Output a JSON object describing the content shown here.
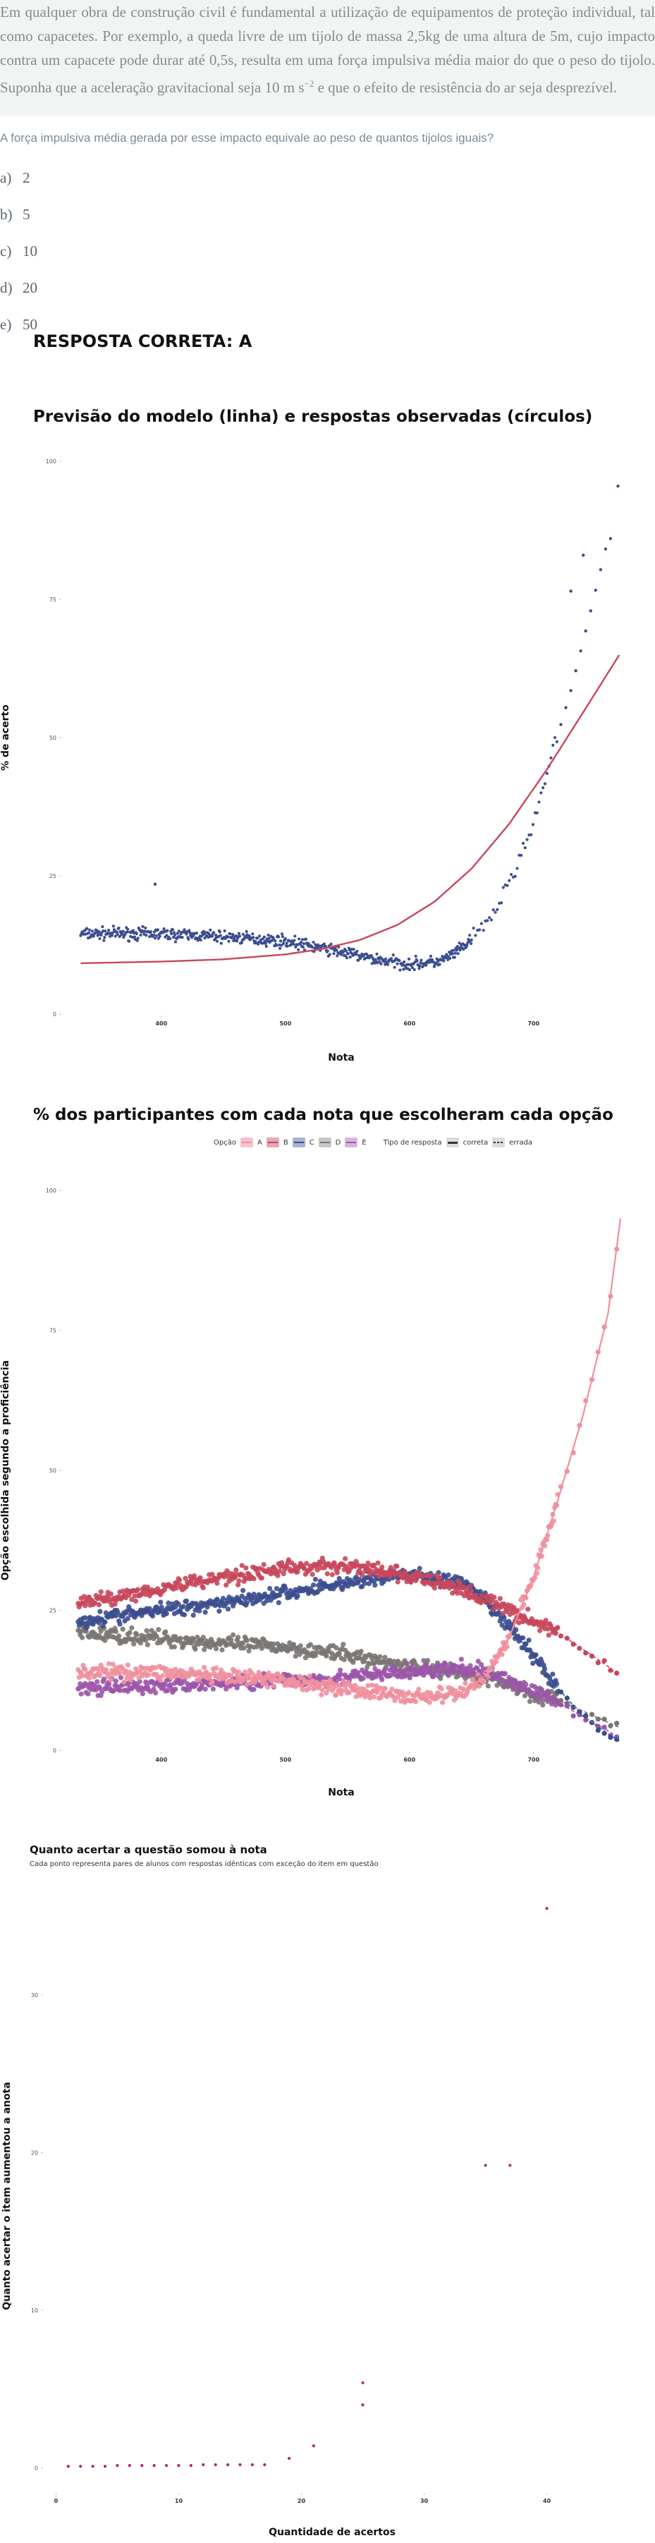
{
  "item": {
    "stem": "Em qualquer obra de construção civil é fundamental a utilização de equipamentos de proteção individual, tal como capacetes. Por exemplo, a queda livre de um tijolo de massa 2,5kg de uma altura de 5m, cujo impacto contra um capacete pode durar até 0,5s, resulta em uma força impulsiva média maior do que o peso do tijolo. Suponha que a aceleração gravitacional seja 10 m s",
    "stem_sup": "−2",
    "stem_tail": " e que o efeito de resistência do ar seja desprezível.",
    "question": "A força impulsiva média gerada por esse impacto equivale ao peso de quantos tijolos iguais?",
    "alternatives": [
      {
        "letter": "a)",
        "text": "2"
      },
      {
        "letter": "b)",
        "text": "5"
      },
      {
        "letter": "c)",
        "text": "10"
      },
      {
        "letter": "d)",
        "text": "20"
      },
      {
        "letter": "e)",
        "text": "50"
      }
    ],
    "answer": "RESPOSTA CORRETA: A"
  },
  "chart_data": [
    {
      "type": "scatter",
      "title": "Previsão do modelo (linha) e respostas observadas (círculos)",
      "xlabel": "Nota",
      "ylabel": "% de acerto",
      "x_ticks": [
        "400",
        "500",
        "600",
        "700"
      ],
      "y_ticks": [
        "0",
        "25",
        "50",
        "75",
        "100"
      ],
      "xlim": [
        320,
        770
      ],
      "ylim": [
        0,
        100
      ],
      "colors": {
        "points": "#3c4e8f",
        "model": "#c8475b"
      },
      "model_curve": {
        "x": [
          335,
          400,
          450,
          500,
          530,
          560,
          590,
          620,
          650,
          680,
          710,
          740,
          770
        ],
        "y": [
          9.2,
          9.5,
          9.9,
          10.8,
          11.8,
          13.4,
          16.1,
          20.3,
          26.3,
          34.3,
          44.0,
          54.6,
          65.3
        ]
      },
      "observed_trend": {
        "x": [
          335,
          360,
          400,
          450,
          500,
          540,
          570,
          600,
          625,
          640,
          655,
          670,
          690,
          705,
          715,
          730,
          745,
          760
        ],
        "y": [
          14.5,
          14.6,
          14.5,
          14.0,
          13.2,
          11.5,
          10.0,
          9.0,
          9.5,
          11.5,
          14.5,
          19.0,
          28.5,
          38.5,
          47.0,
          58.5,
          72.0,
          86.0
        ]
      },
      "outliers": [
        {
          "x": 395,
          "y": 23.5
        },
        {
          "x": 768,
          "y": 95.5
        },
        {
          "x": 740,
          "y": 83.0
        },
        {
          "x": 730,
          "y": 76.5
        }
      ]
    },
    {
      "type": "scatter",
      "title": "% dos participantes com cada nota que escolheram cada opção",
      "xlabel": "Nota",
      "ylabel": "Opção escolhida segundo a proficiência",
      "x_ticks": [
        "400",
        "500",
        "600",
        "700"
      ],
      "y_ticks": [
        "0",
        "25",
        "50",
        "75",
        "100"
      ],
      "xlim": [
        320,
        770
      ],
      "ylim": [
        0,
        100
      ],
      "legend": {
        "option_title": "Opção",
        "options": [
          {
            "name": "A",
            "color": "#f0909f"
          },
          {
            "name": "B",
            "color": "#c8475b"
          },
          {
            "name": "C",
            "color": "#3c4e8f"
          },
          {
            "name": "D",
            "color": "#7a7573"
          },
          {
            "name": "E",
            "color": "#9c55aa"
          }
        ],
        "type_title": "Tipo de resposta",
        "types": [
          "correta",
          "errada"
        ]
      },
      "series": [
        {
          "name": "A",
          "x": [
            330,
            400,
            450,
            500,
            550,
            600,
            640,
            660,
            680,
            700,
            720,
            740,
            760,
            770
          ],
          "y": [
            14,
            14,
            13,
            12.5,
            11,
            9.5,
            10,
            13,
            20,
            31,
            45,
            60,
            78,
            95
          ]
        },
        {
          "name": "B",
          "x": [
            330,
            400,
            450,
            500,
            550,
            600,
            640,
            660,
            680,
            700,
            720,
            740,
            760,
            770
          ],
          "y": [
            26,
            29,
            31,
            32.5,
            33,
            31,
            29,
            27,
            25,
            23,
            21,
            18,
            15,
            13
          ]
        },
        {
          "name": "C",
          "x": [
            330,
            400,
            450,
            500,
            550,
            600,
            640,
            660,
            680,
            700,
            720,
            740,
            760,
            770
          ],
          "y": [
            23,
            25,
            26.5,
            28,
            30,
            31.5,
            30,
            27,
            22,
            17,
            11,
            6,
            3,
            1.5
          ]
        },
        {
          "name": "D",
          "x": [
            330,
            400,
            450,
            500,
            550,
            600,
            640,
            660,
            680,
            700,
            720,
            740,
            760,
            770
          ],
          "y": [
            21,
            20,
            19,
            18.5,
            17,
            15,
            14,
            13,
            12,
            10,
            9,
            7,
            5,
            4
          ]
        },
        {
          "name": "E",
          "x": [
            330,
            400,
            450,
            500,
            550,
            600,
            640,
            660,
            680,
            700,
            720,
            740,
            760,
            770
          ],
          "y": [
            11,
            11.5,
            12,
            12.5,
            13,
            14,
            14.5,
            14,
            12.5,
            10.5,
            8.5,
            6,
            3.5,
            2
          ]
        }
      ]
    },
    {
      "type": "scatter",
      "title": "Quanto acertar a questão somou à nota",
      "subtitle": "Cada ponto representa pares de alunos com respostas idênticas com exceção do item em questão",
      "xlabel": "Quantidade de acertos",
      "ylabel": "Quanto acertar o item aumentou a anota",
      "x_ticks": [
        "0",
        "10",
        "20",
        "30",
        "40"
      ],
      "y_ticks": [
        "0",
        "10",
        "20",
        "30"
      ],
      "xlim": [
        -1,
        46
      ],
      "ylim": [
        -1.5,
        36
      ],
      "color": "#b3227a",
      "points": [
        {
          "x": 1,
          "y": 0.1
        },
        {
          "x": 2,
          "y": 0.1
        },
        {
          "x": 3,
          "y": 0.1
        },
        {
          "x": 4,
          "y": 0.1
        },
        {
          "x": 5,
          "y": 0.15
        },
        {
          "x": 6,
          "y": 0.15
        },
        {
          "x": 7,
          "y": 0.15
        },
        {
          "x": 8,
          "y": 0.15
        },
        {
          "x": 9,
          "y": 0.15
        },
        {
          "x": 10,
          "y": 0.15
        },
        {
          "x": 11,
          "y": 0.15
        },
        {
          "x": 12,
          "y": 0.2
        },
        {
          "x": 13,
          "y": 0.2
        },
        {
          "x": 14,
          "y": 0.2
        },
        {
          "x": 15,
          "y": 0.2
        },
        {
          "x": 16,
          "y": 0.2
        },
        {
          "x": 17,
          "y": 0.2
        },
        {
          "x": 19,
          "y": 0.6
        },
        {
          "x": 21,
          "y": 1.4
        },
        {
          "x": 25,
          "y": 4.0
        },
        {
          "x": 25,
          "y": 5.4
        },
        {
          "x": 35,
          "y": 19.2
        },
        {
          "x": 37,
          "y": 19.2
        },
        {
          "x": 40,
          "y": 35.5
        }
      ]
    }
  ]
}
